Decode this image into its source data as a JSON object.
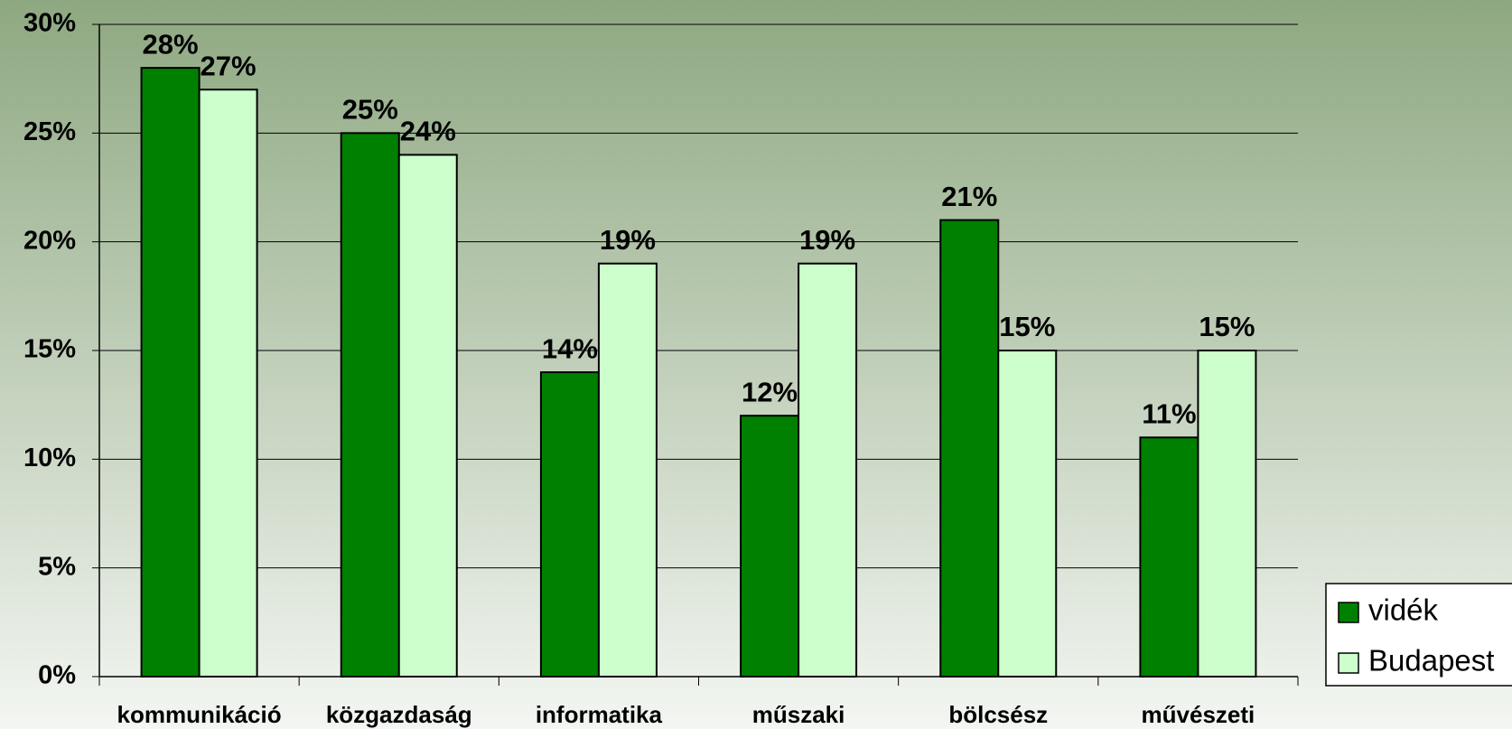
{
  "chart_data": {
    "type": "bar",
    "categories": [
      "kommunikáció",
      "közgazdaság",
      "informatika",
      "műszaki",
      "bölcsész",
      "művészeti"
    ],
    "series": [
      {
        "name": "vidék",
        "color": "#008000",
        "values": [
          28,
          25,
          14,
          12,
          21,
          11
        ],
        "value_labels": [
          "28%",
          "25%",
          "14%",
          "12%",
          "21%",
          "11%"
        ]
      },
      {
        "name": "Budapest",
        "color": "#ccffcc",
        "values": [
          27,
          24,
          19,
          19,
          15,
          15
        ],
        "value_labels": [
          "27%",
          "24%",
          "19%",
          "19%",
          "15%",
          "15%"
        ]
      }
    ],
    "ylim": [
      0,
      30
    ],
    "yticks": [
      {
        "value": 0,
        "label": "0%"
      },
      {
        "value": 5,
        "label": "5%"
      },
      {
        "value": 10,
        "label": "10%"
      },
      {
        "value": 15,
        "label": "15%"
      },
      {
        "value": 20,
        "label": "20%"
      },
      {
        "value": 25,
        "label": "25%"
      },
      {
        "value": 30,
        "label": "30%"
      }
    ],
    "grid": true,
    "legend": "right"
  }
}
